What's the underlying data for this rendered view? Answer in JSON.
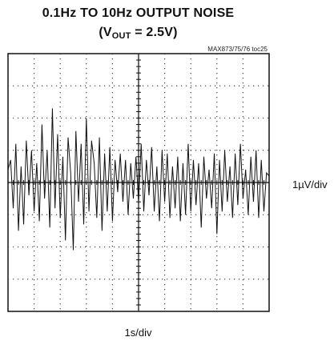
{
  "chart_data": {
    "type": "line",
    "title_line1": "0.1Hz TO 10Hz OUTPUT NOISE",
    "title_line2": {
      "prefix": "(V",
      "subscript": "OUT",
      "suffix": " = 2.5V)"
    },
    "annotation": "MAX873/75/76 toc25",
    "xlabel": "1s/div",
    "ylabel": "1µV/div",
    "divisions": {
      "x": 10,
      "y": 8
    },
    "xlim": [
      0,
      10
    ],
    "ylim": [
      -4,
      4
    ],
    "grid": "dotted",
    "series": [
      {
        "x": [
          0.0,
          0.1,
          0.2,
          0.3,
          0.4,
          0.5,
          0.6,
          0.7,
          0.8,
          0.9,
          1.0,
          1.1,
          1.2,
          1.3,
          1.4,
          1.5,
          1.6,
          1.7,
          1.8,
          1.9,
          2.0,
          2.1,
          2.2,
          2.3,
          2.4,
          2.5,
          2.6,
          2.7,
          2.8,
          2.9,
          3.0,
          3.1,
          3.2,
          3.3,
          3.4,
          3.5,
          3.6,
          3.7,
          3.8,
          3.9,
          4.0,
          4.1,
          4.2,
          4.3,
          4.4,
          4.5,
          4.6,
          4.7,
          4.8,
          4.9,
          5.0,
          5.1,
          5.2,
          5.3,
          5.4,
          5.5,
          5.6,
          5.7,
          5.8,
          5.9,
          6.0,
          6.1,
          6.2,
          6.3,
          6.4,
          6.5,
          6.6,
          6.7,
          6.8,
          6.9,
          7.0,
          7.1,
          7.2,
          7.3,
          7.4,
          7.5,
          7.6,
          7.7,
          7.8,
          7.9,
          8.0,
          8.1,
          8.2,
          8.3,
          8.4,
          8.5,
          8.6,
          8.7,
          8.8,
          8.9,
          9.0,
          9.1,
          9.2,
          9.3,
          9.4,
          9.5,
          9.6,
          9.7,
          9.8,
          9.9,
          10.0
        ],
        "y": [
          0.4,
          0.7,
          -0.8,
          1.2,
          -1.5,
          0.5,
          -1.3,
          1.3,
          -0.4,
          1.0,
          -0.9,
          0.6,
          -1.2,
          1.8,
          -0.5,
          1.0,
          -1.4,
          2.3,
          -0.8,
          1.5,
          -1.1,
          0.8,
          -1.8,
          1.4,
          0.3,
          -2.1,
          1.6,
          -0.6,
          1.2,
          -1.3,
          2.0,
          -0.9,
          1.3,
          0.6,
          -1.1,
          1.4,
          -1.5,
          0.9,
          -0.9,
          1.1,
          -1.2,
          0.7,
          -0.3,
          0.9,
          -0.6,
          0.7,
          -1.0,
          0.6,
          -0.5,
          0.8,
          -0.6,
          1.2,
          -0.9,
          0.7,
          -0.4,
          1.1,
          -0.9,
          0.5,
          -1.2,
          1.0,
          -0.6,
          0.9,
          -1.1,
          0.5,
          -0.8,
          0.8,
          -1.2,
          0.6,
          -1.0,
          1.2,
          -0.9,
          0.7,
          -0.7,
          0.6,
          -1.4,
          0.8,
          -0.5,
          0.4,
          -0.8,
          0.9,
          -1.6,
          0.7,
          -0.9,
          1.0,
          -0.6,
          0.5,
          -1.1,
          0.9,
          -0.7,
          1.2,
          -0.5,
          0.4,
          -1.0,
          0.8,
          -0.6,
          1.0,
          -1.1,
          0.7,
          -0.9,
          0.3,
          0.2
        ]
      }
    ]
  }
}
